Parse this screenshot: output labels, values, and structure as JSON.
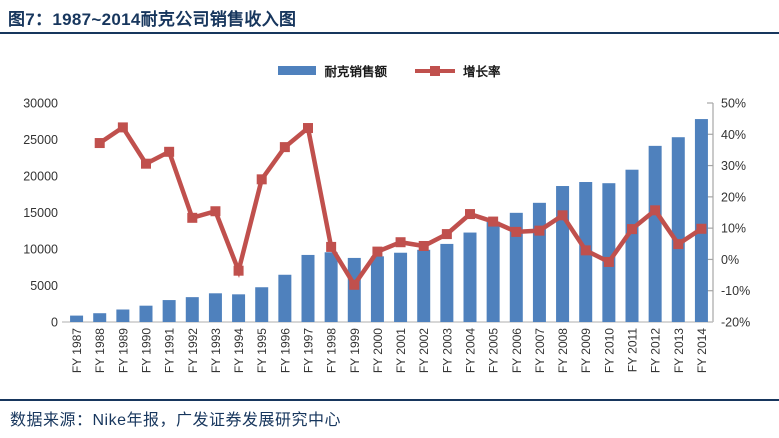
{
  "header": {
    "title": "图7：1987~2014耐克公司销售收入图"
  },
  "footer": {
    "source": "数据来源：Nike年报，广发证券发展研究中心"
  },
  "colors": {
    "bar": "#4F81BD",
    "line": "#C0504D",
    "navy": "#17365D",
    "right_axis_line": "#A6A6A6",
    "bottom_axis_line": "#BFBFBF",
    "tick_text": "#333333"
  },
  "chart_data": {
    "type": "bar",
    "subtype": "bar+line combo, dual axis",
    "grid": "off",
    "legend_position": "top-center",
    "categories": [
      "FY 1987",
      "FY 1988",
      "FY 1989",
      "FY 1990",
      "FY 1991",
      "FY 1992",
      "FY 1993",
      "FY 1994",
      "FY 1995",
      "FY 1996",
      "FY 1997",
      "FY 1998",
      "FY 1999",
      "FY 2000",
      "FY 2001",
      "FY 2002",
      "FY 2003",
      "FY 2004",
      "FY 2005",
      "FY 2006",
      "FY 2007",
      "FY 2008",
      "FY 2009",
      "FY 2010",
      "FY 2011",
      "FY 2012",
      "FY 2013",
      "FY 2014"
    ],
    "series": [
      {
        "name": "耐克销售额",
        "type": "bar",
        "axis": "left",
        "color": "#4F81BD",
        "values": [
          877,
          1203,
          1711,
          2235,
          3004,
          3405,
          3931,
          3790,
          4761,
          6471,
          9187,
          9553,
          8777,
          8995,
          9489,
          9893,
          10697,
          12253,
          13740,
          14955,
          16326,
          18627,
          19176,
          19014,
          20862,
          24128,
          25313,
          27799
        ]
      },
      {
        "name": "增长率",
        "type": "line",
        "axis": "right",
        "color": "#C0504D",
        "values": [
          null,
          37.2,
          42.2,
          30.6,
          34.4,
          13.3,
          15.4,
          -3.6,
          25.6,
          35.9,
          42.0,
          4.0,
          -8.1,
          2.5,
          5.5,
          4.3,
          8.1,
          14.5,
          12.1,
          8.8,
          9.2,
          14.1,
          2.9,
          -0.8,
          9.7,
          15.7,
          4.9,
          9.8
        ]
      }
    ],
    "left_axis": {
      "min": 0,
      "max": 30000,
      "step": 5000,
      "ticks": [
        "0",
        "5000",
        "10000",
        "15000",
        "20000",
        "25000",
        "30000"
      ]
    },
    "right_axis": {
      "min": -20,
      "max": 50,
      "step": 10,
      "ticks": [
        "-20%",
        "-10%",
        "0%",
        "10%",
        "20%",
        "30%",
        "40%",
        "50%"
      ]
    }
  }
}
